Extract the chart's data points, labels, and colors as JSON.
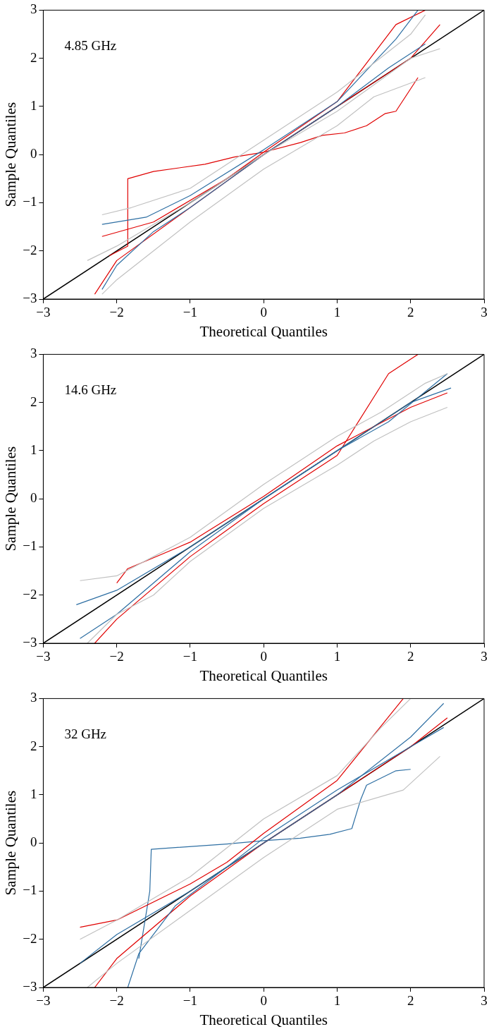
{
  "chart_data": [
    {
      "type": "line",
      "xlabel": "Theoretical Quantiles",
      "ylabel": "Sample Quantiles",
      "annotations": [
        "4.85 GHz"
      ],
      "xlim": [
        -3,
        3
      ],
      "ylim": [
        -3,
        3
      ],
      "xticks": [
        {
          "value": -3,
          "label": "−3"
        },
        {
          "value": -2,
          "label": "−2"
        },
        {
          "value": -1,
          "label": "−1"
        },
        0,
        1,
        2,
        3
      ],
      "yticks": [
        {
          "value": -3,
          "label": "−3"
        },
        {
          "value": -2,
          "label": "−2"
        },
        {
          "value": -1,
          "label": "−1"
        },
        0,
        1,
        2,
        3
      ],
      "series": [
        {
          "color": "#c0c0c0",
          "x": [
            -2.2,
            -1.8,
            -1,
            0,
            1,
            1.5,
            2,
            2.2
          ],
          "values": [
            -1.25,
            -1.1,
            -0.7,
            0.3,
            1.3,
            1.9,
            2.5,
            2.9
          ]
        },
        {
          "color": "#c0c0c0",
          "x": [
            -2.2,
            -2,
            -1.5,
            -1,
            0,
            1,
            1.5,
            2.2
          ],
          "values": [
            -2.9,
            -2.6,
            -2,
            -1.4,
            -0.3,
            0.6,
            1.2,
            1.6
          ]
        },
        {
          "color": "#c0c0c0",
          "x": [
            -2.4,
            -2,
            -1,
            0,
            1,
            2,
            2.4
          ],
          "values": [
            -2.2,
            -1.9,
            -1,
            0,
            0.9,
            2,
            2.2
          ]
        },
        {
          "color": "#2e6fa3",
          "x": [
            -2.2,
            -2,
            -1.5,
            -1,
            0,
            1,
            1.7,
            2.2
          ],
          "values": [
            -2.8,
            -2.3,
            -1.6,
            -1.1,
            0,
            1,
            1.8,
            2.3
          ]
        },
        {
          "color": "#2e6fa3",
          "x": [
            -2.2,
            -1.6,
            -1,
            0,
            1,
            1.8,
            2.1
          ],
          "values": [
            -1.45,
            -1.3,
            -0.85,
            0.1,
            1.1,
            2.4,
            3
          ]
        },
        {
          "color": "#e00000",
          "x": [
            -2.3,
            -2,
            -1,
            0,
            1,
            2,
            2.4
          ],
          "values": [
            -2.9,
            -2.2,
            -1.1,
            0,
            1,
            2,
            2.7
          ]
        },
        {
          "color": "#e00000",
          "x": [
            -2.2,
            -1.5,
            -0.5,
            0,
            1,
            1.8,
            2.2
          ],
          "values": [
            -1.7,
            -1.4,
            -0.5,
            0.05,
            1.1,
            2.7,
            3
          ]
        },
        {
          "color": "#e00000",
          "x": [
            -2.1,
            -1.85,
            -1.85,
            -1.5,
            -0.8,
            -0.4,
            0,
            0.5,
            0.8,
            1.1,
            1.4,
            1.65,
            1.8,
            2.1
          ],
          "values": [
            -2.1,
            -1.9,
            -0.5,
            -0.35,
            -0.2,
            -0.05,
            0.05,
            0.25,
            0.4,
            0.45,
            0.6,
            0.85,
            0.9,
            1.6
          ]
        },
        {
          "color": "#000000",
          "x": [
            -3,
            3
          ],
          "values": [
            -3,
            3
          ]
        }
      ]
    },
    {
      "type": "line",
      "xlabel": "Theoretical Quantiles",
      "ylabel": "Sample Quantiles",
      "annotations": [
        "14.6 GHz"
      ],
      "xlim": [
        -3,
        3
      ],
      "ylim": [
        -3,
        3
      ],
      "xticks": [
        {
          "value": -3,
          "label": "−3"
        },
        {
          "value": -2,
          "label": "−2"
        },
        {
          "value": -1,
          "label": "−1"
        },
        0,
        1,
        2,
        3
      ],
      "yticks": [
        {
          "value": -3,
          "label": "−3"
        },
        {
          "value": -2,
          "label": "−2"
        },
        {
          "value": -1,
          "label": "−1"
        },
        0,
        1,
        2,
        3
      ],
      "series": [
        {
          "color": "#c0c0c0",
          "x": [
            -2.5,
            -2,
            -1.5,
            -1,
            0,
            1,
            1.6,
            2.2,
            2.5
          ],
          "values": [
            -1.7,
            -1.6,
            -1.2,
            -0.8,
            0.3,
            1.3,
            1.8,
            2.4,
            2.6
          ]
        },
        {
          "color": "#c0c0c0",
          "x": [
            -2.4,
            -2,
            -1.5,
            -1,
            0,
            1,
            1.5,
            2,
            2.5
          ],
          "values": [
            -3,
            -2.4,
            -2,
            -1.3,
            -0.2,
            0.7,
            1.2,
            1.6,
            1.9
          ]
        },
        {
          "color": "#2e6fa3",
          "x": [
            -2.55,
            -2,
            -1,
            0,
            1,
            2,
            2.55
          ],
          "values": [
            -2.2,
            -1.9,
            -1,
            0,
            1,
            2,
            2.3
          ]
        },
        {
          "color": "#2e6fa3",
          "x": [
            -2.5,
            -2,
            -1,
            0,
            1,
            1.7,
            2.5
          ],
          "values": [
            -2.9,
            -2.4,
            -1.1,
            0,
            1,
            1.6,
            2.6
          ]
        },
        {
          "color": "#e00000",
          "x": [
            -2.3,
            -2,
            -1,
            0,
            1,
            1.7,
            2.1
          ],
          "values": [
            -3,
            -2.5,
            -1.2,
            -0.1,
            0.9,
            2.6,
            3
          ]
        },
        {
          "color": "#e00000",
          "x": [
            -2,
            -1.85,
            -1,
            0,
            1,
            2,
            2.5
          ],
          "values": [
            -1.75,
            -1.45,
            -0.9,
            0.05,
            1.1,
            1.9,
            2.2
          ]
        },
        {
          "color": "#000000",
          "x": [
            -3,
            3
          ],
          "values": [
            -3,
            3
          ]
        }
      ]
    },
    {
      "type": "line",
      "xlabel": "Theoretical Quantiles",
      "ylabel": "Sample Quantiles",
      "annotations": [
        "32 GHz"
      ],
      "xlim": [
        -3,
        3
      ],
      "ylim": [
        -3,
        3
      ],
      "xticks": [
        {
          "value": -3,
          "label": "−3"
        },
        {
          "value": -2,
          "label": "−2"
        },
        {
          "value": -1,
          "label": "−1"
        },
        0,
        1,
        2,
        3
      ],
      "yticks": [
        {
          "value": -3,
          "label": "−3"
        },
        {
          "value": -2,
          "label": "−2"
        },
        {
          "value": -1,
          "label": "−1"
        },
        0,
        1,
        2,
        3
      ],
      "series": [
        {
          "color": "#c0c0c0",
          "x": [
            -2.5,
            -2,
            -1,
            0,
            1,
            1.6,
            2
          ],
          "values": [
            -2,
            -1.6,
            -0.7,
            0.5,
            1.4,
            2.4,
            3
          ]
        },
        {
          "color": "#c0c0c0",
          "x": [
            -2.4,
            -2,
            -1,
            0,
            1,
            1.9,
            2.4
          ],
          "values": [
            -3,
            -2.5,
            -1.4,
            -0.3,
            0.7,
            1.1,
            1.8
          ]
        },
        {
          "color": "#2e6fa3",
          "x": [
            -2.5,
            -2,
            -1,
            0,
            1,
            2,
            2.45
          ],
          "values": [
            -2.5,
            -1.9,
            -1,
            0,
            1,
            2.2,
            2.9
          ]
        },
        {
          "color": "#2e6fa3",
          "x": [
            -1.85,
            -1.7,
            -1.2,
            -0.5,
            0,
            1,
            2,
            2.45
          ],
          "values": [
            -3,
            -2.3,
            -1.3,
            -0.5,
            0.1,
            1.1,
            2,
            2.4
          ]
        },
        {
          "color": "#e00000",
          "x": [
            -2.3,
            -2,
            -1,
            0,
            1,
            2,
            2.5
          ],
          "values": [
            -3,
            -2.4,
            -1.1,
            0,
            1,
            2,
            2.6
          ]
        },
        {
          "color": "#e00000",
          "x": [
            -2.5,
            -2,
            -1,
            -0.5,
            0,
            1,
            1.9
          ],
          "values": [
            -1.75,
            -1.6,
            -0.85,
            -0.4,
            0.2,
            1.3,
            3
          ]
        },
        {
          "color": "#2e6fa3",
          "x": [
            -1.7,
            -1.55,
            -1.53,
            -0.5,
            0,
            0.5,
            0.9,
            1.2,
            1.32,
            1.4,
            1.8,
            2
          ],
          "values": [
            -2.4,
            -1,
            -0.13,
            -0.02,
            0.05,
            0.1,
            0.18,
            0.3,
            0.9,
            1.2,
            1.5,
            1.53
          ]
        },
        {
          "color": "#000000",
          "x": [
            -3,
            3
          ],
          "values": [
            -3,
            3
          ]
        }
      ]
    }
  ]
}
